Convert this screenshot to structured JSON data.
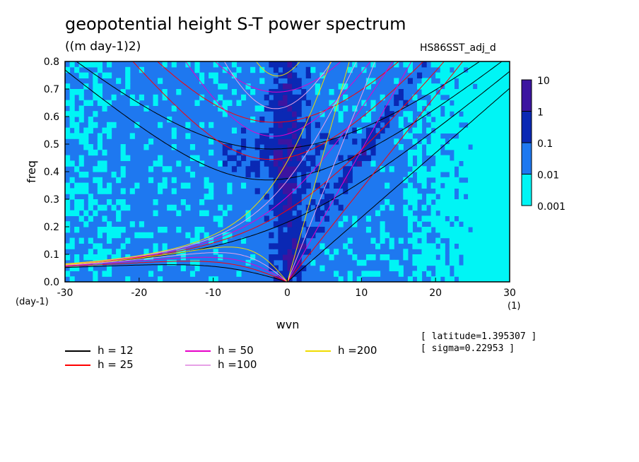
{
  "header": {
    "title": "geopotential height S-T power spectrum",
    "units": "((m day-1)2)",
    "dataset": "HS86SST_adj_d"
  },
  "chart_data": {
    "type": "heatmap",
    "title": "geopotential height S-T power spectrum",
    "subtitle": "((m day-1)2)",
    "xlabel": "wvn",
    "ylabel": "freq",
    "x_unit": "(1)",
    "y_unit": "(day-1)",
    "xlim": [
      -30,
      30
    ],
    "ylim": [
      0,
      0.8
    ],
    "x_ticks": [
      -30,
      -20,
      -10,
      0,
      10,
      20,
      30
    ],
    "x_tick_labels": [
      "-30",
      "-20",
      "-10",
      "0",
      "10",
      "20",
      "30"
    ],
    "y_ticks": [
      0,
      0.1,
      0.2,
      0.3,
      0.4,
      0.5,
      0.6,
      0.7,
      0.8
    ],
    "y_tick_labels": [
      "0.0",
      "0.1",
      "0.2",
      "0.3",
      "0.4",
      "0.5",
      "0.6",
      "0.7",
      "0.8"
    ],
    "colorbar": {
      "levels": [
        0.001,
        0.01,
        0.1,
        1,
        10
      ],
      "labels": [
        "0.001",
        "0.01",
        "0.1",
        "1",
        "10"
      ],
      "colors": [
        "#00f5f5",
        "#1e78f0",
        "#0a28b4",
        "#3c14a0"
      ]
    },
    "dispersion_curves": [
      {
        "label": "h = 12",
        "h": 12,
        "color": "#000000"
      },
      {
        "label": "h = 25",
        "h": 25,
        "color": "#ff0000"
      },
      {
        "label": "h = 50",
        "h": 50,
        "color": "#e600c8"
      },
      {
        "label": "h =100",
        "h": 100,
        "color": "#e6a0e6"
      },
      {
        "label": "h =200",
        "h": 200,
        "color": "#f0dc00"
      }
    ],
    "annotations": [
      "[ latitude=1.395307 ]",
      "[ sigma=0.22953 ]"
    ]
  }
}
